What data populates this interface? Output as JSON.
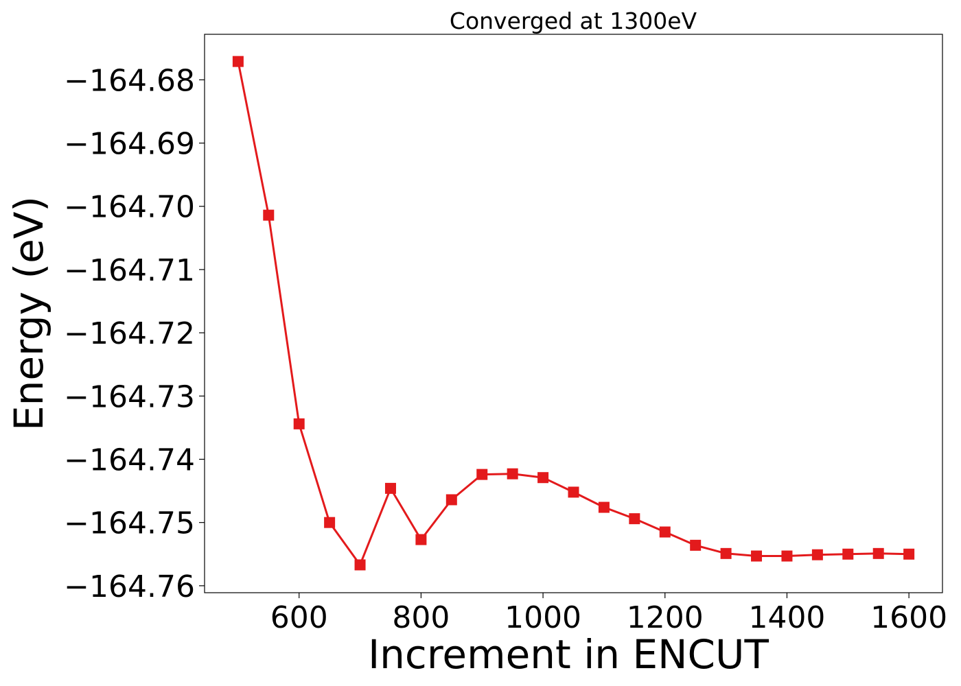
{
  "chart_data": {
    "type": "line",
    "title": "Converged at 1300eV",
    "xlabel": "Increment in ENCUT",
    "ylabel": "Energy (eV)",
    "xlim": [
      445,
      1655
    ],
    "ylim": [
      -164.7611,
      -164.6728
    ],
    "xticks": [
      600,
      800,
      1000,
      1200,
      1400,
      1600
    ],
    "xtick_labels": [
      "600",
      "800",
      "1000",
      "1200",
      "1400",
      "1600"
    ],
    "yticks": [
      -164.76,
      -164.75,
      -164.74,
      -164.73,
      -164.72,
      -164.71,
      -164.7,
      -164.69,
      -164.68
    ],
    "ytick_labels": [
      "−164.76",
      "−164.75",
      "−164.74",
      "−164.73",
      "−164.72",
      "−164.71",
      "−164.70",
      "−164.69",
      "−164.68"
    ],
    "grid": false,
    "legend": "none",
    "series": [
      {
        "color": "#e31a1c",
        "marker": "square",
        "x": [
          500,
          550,
          600,
          650,
          700,
          750,
          800,
          850,
          900,
          950,
          1000,
          1050,
          1100,
          1150,
          1200,
          1250,
          1300,
          1350,
          1400,
          1450,
          1500,
          1550,
          1600
        ],
        "y": [
          -164.6771,
          -164.7014,
          -164.7344,
          -164.75,
          -164.7567,
          -164.7446,
          -164.7527,
          -164.7464,
          -164.7424,
          -164.7423,
          -164.7429,
          -164.7452,
          -164.7476,
          -164.7494,
          -164.7515,
          -164.7536,
          -164.7549,
          -164.7553,
          -164.7553,
          -164.7551,
          -164.755,
          -164.7549,
          -164.755
        ]
      }
    ]
  }
}
